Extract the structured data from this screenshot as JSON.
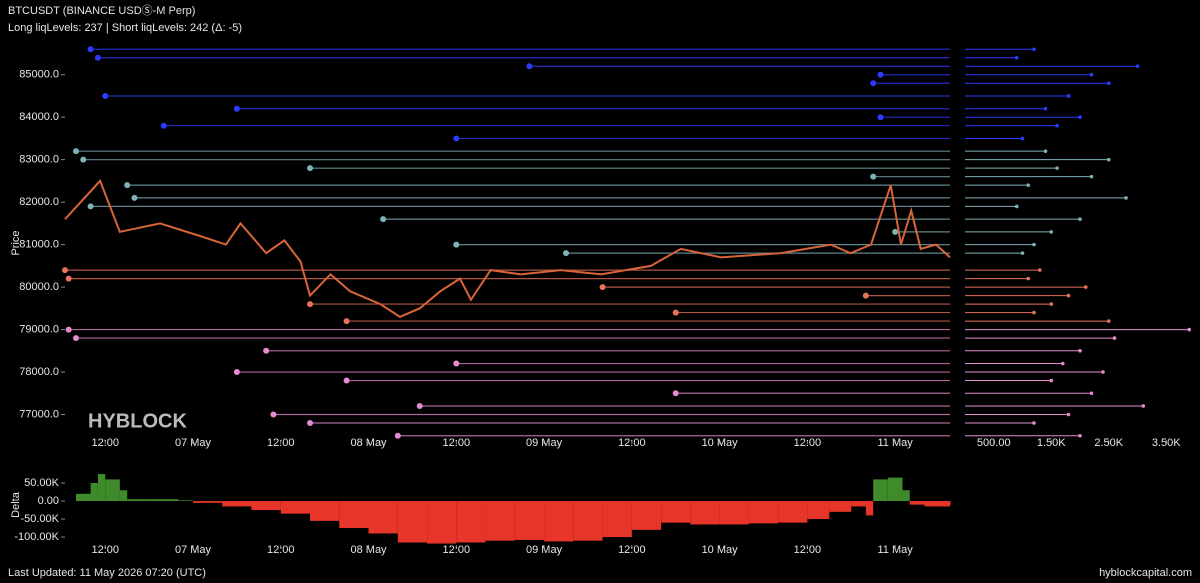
{
  "header": {
    "title": "BTCUSDT (BINANCE USDⓈ-M Perp)",
    "subtitle": "Long liqLevels: 237 | Short liqLevels: 242 (Δ: -5)"
  },
  "watermark": "HYBLOCK",
  "footer": {
    "updated": "Last Updated: 11 May 2026 07:20 (UTC)",
    "site": "hyblockcapital.com"
  },
  "chart_data": [
    {
      "type": "line",
      "y_label": "Price",
      "color": "#d8643a",
      "x": [
        6.5,
        11.3,
        14,
        19.5,
        25,
        28.5,
        30.5,
        34,
        36.5,
        38.7,
        40,
        42.8,
        45.5,
        49.6,
        52.3,
        55,
        57.8,
        60.5,
        62,
        64.7,
        68.8,
        74.3,
        79.8,
        86.6,
        90.7,
        96.2,
        104.4,
        111.2,
        113.9,
        116.7,
        119.4,
        120.8,
        122.2,
        123.5,
        125.6,
        127.5
      ],
      "values": [
        81600,
        82500,
        81300,
        81500,
        81200,
        81000,
        81500,
        80800,
        81100,
        80600,
        79800,
        80300,
        79900,
        79600,
        79300,
        79500,
        79900,
        80200,
        79700,
        80400,
        80300,
        80400,
        80300,
        80500,
        80900,
        80700,
        80800,
        81000,
        80800,
        81000,
        82400,
        81000,
        81800,
        80900,
        81000,
        80700
      ],
      "xlim": [
        6.5,
        127.5
      ],
      "xticks": [
        {
          "value": 12,
          "label": "12:00"
        },
        {
          "value": 24,
          "label": "07 May"
        },
        {
          "value": 36,
          "label": "12:00"
        },
        {
          "value": 48,
          "label": "08 May"
        },
        {
          "value": 60,
          "label": "12:00"
        },
        {
          "value": 72,
          "label": "09 May"
        },
        {
          "value": 84,
          "label": "12:00"
        },
        {
          "value": 96,
          "label": "10 May"
        },
        {
          "value": 108,
          "label": "12:00"
        },
        {
          "value": 120,
          "label": "11 May"
        }
      ],
      "ylim": [
        76400,
        85700
      ],
      "yticks": [
        {
          "value": 77000,
          "label": "77000.0"
        },
        {
          "value": 78000,
          "label": "78000.0"
        },
        {
          "value": 79000,
          "label": "79000.0"
        },
        {
          "value": 80000,
          "label": "80000.0"
        },
        {
          "value": 81000,
          "label": "81000.0"
        },
        {
          "value": 82000,
          "label": "82000.0"
        },
        {
          "value": 83000,
          "label": "83000.0"
        },
        {
          "value": 84000,
          "label": "84000.0"
        },
        {
          "value": 85000,
          "label": "85000.0"
        }
      ],
      "x2lim": [
        0,
        4000
      ],
      "x2ticks": [
        {
          "value": 500,
          "label": "500.00"
        },
        {
          "value": 1500,
          "label": "1.50K"
        },
        {
          "value": 2500,
          "label": "2.50K"
        },
        {
          "value": 3500,
          "label": "3.50K"
        }
      ],
      "levels": [
        {
          "color": "#2b3cff",
          "prices": [
            85600,
            85400,
            85200,
            85000,
            84800,
            84500,
            84200,
            84000,
            83800,
            83500
          ],
          "starts": [
            10,
            11,
            70,
            118,
            117,
            12,
            30,
            118,
            20,
            60
          ],
          "amounts": [
            1200,
            900,
            3000,
            2200,
            2500,
            1800,
            1400,
            2000,
            1600,
            1000
          ]
        },
        {
          "color": "#7fb2b8",
          "prices": [
            83200,
            83000,
            82800,
            82600,
            82400,
            82100,
            81900,
            81600,
            81300,
            81000,
            80800
          ],
          "starts": [
            8,
            9,
            40,
            117,
            15,
            16,
            10,
            50,
            120,
            60,
            75
          ],
          "amounts": [
            1400,
            2500,
            1600,
            2200,
            1100,
            2800,
            900,
            2000,
            1500,
            1200,
            1000
          ]
        },
        {
          "color": "#e8735a",
          "prices": [
            80400,
            80200,
            80000,
            79800,
            79600,
            79400,
            79200
          ],
          "starts": [
            6.5,
            7,
            80,
            116,
            40,
            90,
            45
          ],
          "amounts": [
            1300,
            1100,
            2100,
            1800,
            1500,
            1200,
            2500
          ]
        },
        {
          "color": "#e58bd0",
          "prices": [
            79000,
            78800,
            78500,
            78200,
            78000,
            77800,
            77500,
            77200,
            77000,
            76800,
            76500
          ],
          "starts": [
            7,
            8,
            34,
            60,
            30,
            45,
            90,
            55,
            35,
            40,
            52
          ],
          "amounts": [
            3900,
            2600,
            2000,
            1700,
            2400,
            1500,
            2200,
            3100,
            1800,
            1200,
            2000
          ]
        }
      ]
    },
    {
      "type": "bar",
      "y_label": "Delta",
      "positive_color": "#3f8a2a",
      "negative_color": "#e8352a",
      "x": [
        6.5,
        8,
        10,
        11,
        12,
        14,
        15,
        18,
        22,
        24,
        28,
        32,
        36,
        40,
        44,
        48,
        52,
        56,
        60,
        64,
        68,
        72,
        76,
        80,
        84,
        88,
        92,
        96,
        100,
        104,
        108,
        111,
        114,
        116,
        117,
        119,
        121,
        122,
        124,
        127.5
      ],
      "values": [
        0,
        20000,
        50000,
        75000,
        60000,
        30000,
        5000,
        5000,
        2000,
        -5000,
        -15000,
        -25000,
        -35000,
        -55000,
        -75000,
        -90000,
        -115000,
        -118000,
        -115000,
        -110000,
        -108000,
        -112000,
        -110000,
        -100000,
        -80000,
        -60000,
        -65000,
        -65000,
        -62000,
        -60000,
        -50000,
        -30000,
        -15000,
        -40000,
        60000,
        65000,
        30000,
        -10000,
        -15000,
        -10000
      ],
      "xlim": [
        6.5,
        127.5
      ],
      "ylim": [
        -122000,
        100000
      ],
      "yticks": [
        {
          "value": 50000,
          "label": "50.00K"
        },
        {
          "value": 0,
          "label": "0.00"
        },
        {
          "value": -50000,
          "label": "-50.00K"
        },
        {
          "value": -100000,
          "label": "-100.00K"
        }
      ]
    }
  ]
}
